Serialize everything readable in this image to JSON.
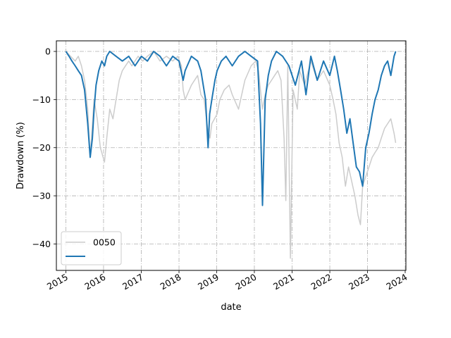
{
  "chart_data": {
    "type": "line",
    "title": "",
    "xlabel": "date",
    "ylabel": "Drawdown (%)",
    "x_tick_labels": [
      "2015",
      "2016",
      "2017",
      "2018",
      "2019",
      "2020",
      "2021",
      "2022",
      "2023",
      "2024"
    ],
    "y_tick_labels": [
      "0",
      "−10",
      "−20",
      "−30",
      "−40"
    ],
    "y_ticks": [
      0,
      -10,
      -20,
      -30,
      -40
    ],
    "xlim": [
      "2014-10-01",
      "2024-01-08"
    ],
    "ylim": [
      -45.5,
      2.2
    ],
    "grid": true,
    "legend_placement": "lower-left",
    "series": [
      {
        "name": "0050",
        "color": "#cccccc",
        "x": [
          "2015-01-01",
          "2015-02-15",
          "2015-04-01",
          "2015-05-01",
          "2015-06-01",
          "2015-07-01",
          "2015-08-01",
          "2015-08-25",
          "2015-10-01",
          "2015-11-01",
          "2015-12-01",
          "2016-01-10",
          "2016-02-01",
          "2016-03-01",
          "2016-04-01",
          "2016-05-01",
          "2016-06-01",
          "2016-07-01",
          "2016-08-01",
          "2016-09-01",
          "2016-10-01",
          "2016-12-01",
          "2017-01-15",
          "2017-03-01",
          "2017-05-01",
          "2017-07-01",
          "2017-09-01",
          "2017-11-01",
          "2017-12-20",
          "2018-01-25",
          "2018-02-10",
          "2018-03-01",
          "2018-05-01",
          "2018-07-01",
          "2018-08-01",
          "2018-09-01",
          "2018-10-05",
          "2018-10-28",
          "2018-11-15",
          "2019-01-05",
          "2019-02-01",
          "2019-03-15",
          "2019-05-01",
          "2019-06-01",
          "2019-08-01",
          "2019-10-01",
          "2019-12-01",
          "2020-01-15",
          "2020-02-10",
          "2020-03-20",
          "2020-04-15",
          "2020-05-15",
          "2020-06-15",
          "2020-07-15",
          "2020-08-15",
          "2020-09-15",
          "2020-10-15",
          "2020-11-01",
          "2020-11-20",
          "2020-12-15",
          "2021-01-10",
          "2021-02-20",
          "2021-03-15",
          "2021-05-01",
          "2021-07-01",
          "2021-09-01",
          "2021-11-01",
          "2022-01-01",
          "2022-02-01",
          "2022-03-01",
          "2022-04-01",
          "2022-05-01",
          "2022-06-01",
          "2022-07-01",
          "2022-08-01",
          "2022-09-01",
          "2022-10-01",
          "2022-10-25",
          "2022-11-15",
          "2022-12-15",
          "2023-01-15",
          "2023-02-15",
          "2023-03-15",
          "2023-04-15",
          "2023-05-15",
          "2023-06-15",
          "2023-07-15",
          "2023-08-15",
          "2023-09-15",
          "2023-10-01"
        ],
        "y": [
          0,
          -1,
          -2,
          -1,
          -3,
          -6,
          -12,
          -22,
          -10,
          -14,
          -20,
          -23,
          -18,
          -12,
          -14,
          -10,
          -6,
          -4,
          -3,
          -2,
          -3,
          -1,
          -2,
          -1,
          0,
          -2,
          -1,
          -2,
          -1,
          -3,
          -8,
          -10,
          -7,
          -5,
          -9,
          -10,
          -16,
          -18,
          -15,
          -13,
          -10,
          -8,
          -7,
          -9,
          -12,
          -6,
          -3,
          -2,
          -4,
          -12,
          -9,
          -7,
          -6,
          -5,
          -4,
          -6,
          -18,
          -31,
          -3,
          -43,
          -8,
          -12,
          -4,
          -7,
          -2,
          -6,
          -4,
          -7,
          -10,
          -13,
          -19,
          -22,
          -28,
          -24,
          -27,
          -30,
          -34,
          -36,
          -28,
          -26,
          -24,
          -22,
          -21,
          -20,
          -18,
          -16,
          -15,
          -14,
          -17,
          -19
        ]
      },
      {
        "name": "",
        "color": "#1f77b4",
        "x": [
          "2015-01-01",
          "2015-02-01",
          "2015-03-01",
          "2015-04-01",
          "2015-05-01",
          "2015-06-01",
          "2015-07-01",
          "2015-08-01",
          "2015-08-25",
          "2015-09-15",
          "2015-10-01",
          "2015-10-20",
          "2015-11-15",
          "2015-12-15",
          "2016-01-10",
          "2016-02-01",
          "2016-03-01",
          "2016-05-01",
          "2016-07-01",
          "2016-09-01",
          "2016-11-01",
          "2017-01-01",
          "2017-03-01",
          "2017-05-01",
          "2017-07-01",
          "2017-09-01",
          "2017-11-01",
          "2018-01-01",
          "2018-02-10",
          "2018-03-01",
          "2018-05-01",
          "2018-07-01",
          "2018-08-01",
          "2018-09-15",
          "2018-10-10",
          "2018-10-25",
          "2018-11-15",
          "2018-12-15",
          "2019-01-05",
          "2019-02-15",
          "2019-04-01",
          "2019-06-01",
          "2019-08-01",
          "2019-10-01",
          "2019-12-01",
          "2020-02-01",
          "2020-03-01",
          "2020-03-20",
          "2020-04-15",
          "2020-05-15",
          "2020-06-15",
          "2020-08-01",
          "2020-10-01",
          "2020-12-01",
          "2021-02-01",
          "2021-04-01",
          "2021-05-15",
          "2021-07-01",
          "2021-09-01",
          "2021-11-01",
          "2022-01-01",
          "2022-02-15",
          "2022-03-15",
          "2022-04-15",
          "2022-05-15",
          "2022-06-15",
          "2022-07-15",
          "2022-08-15",
          "2022-09-15",
          "2022-10-15",
          "2022-11-15",
          "2022-12-15",
          "2023-01-15",
          "2023-02-15",
          "2023-03-15",
          "2023-04-15",
          "2023-05-15",
          "2023-06-15",
          "2023-07-15",
          "2023-08-15",
          "2023-09-15",
          "2023-10-01"
        ],
        "y": [
          0,
          -1,
          -2,
          -3,
          -4,
          -5,
          -8,
          -15,
          -22,
          -18,
          -12,
          -7,
          -4,
          -2,
          -3,
          -1,
          0,
          -1,
          -2,
          -1,
          -3,
          -1,
          -2,
          0,
          -1,
          -3,
          -1,
          -2,
          -6,
          -4,
          -1,
          -2,
          -4,
          -10,
          -20,
          -13,
          -10,
          -6,
          -4,
          -2,
          -1,
          -3,
          -1,
          0,
          -1,
          -2,
          -15,
          -32,
          -10,
          -5,
          -2,
          0,
          -1,
          -3,
          -7,
          -2,
          -9,
          -1,
          -6,
          -2,
          -5,
          -1,
          -4,
          -8,
          -12,
          -17,
          -14,
          -19,
          -24,
          -25,
          -28,
          -20,
          -17,
          -13,
          -10,
          -8,
          -5,
          -3,
          -2,
          -5,
          -1,
          0
        ]
      }
    ]
  }
}
